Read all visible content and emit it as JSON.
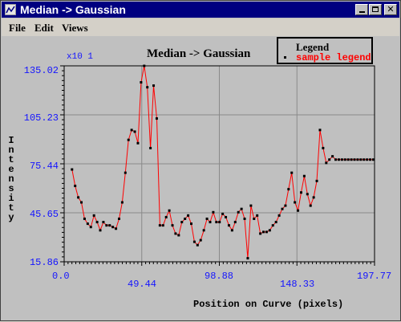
{
  "window": {
    "title": "Median -> Gaussian",
    "controls": [
      "minimize",
      "maximize",
      "close"
    ]
  },
  "menu": {
    "items": [
      "File",
      "Edit",
      "Views"
    ]
  },
  "chart_data": {
    "type": "line",
    "title": "Median -> Gaussian",
    "xlabel": "Position on Curve (pixels)",
    "ylabel": "Intensity",
    "y_scale_note": "x10 1",
    "xlim": [
      0.0,
      197.77
    ],
    "ylim": [
      15.86,
      135.02
    ],
    "x_ticks": [
      "0.0",
      "49.44",
      "98.88",
      "148.33",
      "197.77"
    ],
    "y_ticks": [
      "135.02",
      "105.23",
      "75.44",
      "45.65",
      "15.86"
    ],
    "grid": true,
    "legend_position": "top-right",
    "legend": {
      "title": "Legend",
      "entries": [
        "sample legend"
      ]
    },
    "colors": {
      "line": "#ff0000",
      "marker": "#000000",
      "tick_text": "#1414ff"
    },
    "series": [
      {
        "name": "sample legend",
        "x": [
          5,
          7,
          9,
          11,
          13,
          15,
          17,
          19,
          21,
          23,
          25,
          27,
          29,
          31,
          33,
          35,
          37,
          39,
          41,
          43,
          45,
          47,
          49,
          51,
          53,
          55,
          57,
          59,
          61,
          63,
          65,
          67,
          69,
          71,
          73,
          75,
          77,
          79,
          81,
          83,
          85,
          87,
          89,
          91,
          93,
          95,
          97,
          99,
          101,
          103,
          105,
          107,
          109,
          111,
          113,
          115,
          117,
          119,
          121,
          123,
          125,
          127,
          129,
          131,
          133,
          135,
          137,
          139,
          141,
          143,
          145,
          147,
          149,
          151,
          153,
          155,
          157,
          159,
          161,
          163,
          165,
          167,
          169,
          171,
          173,
          175,
          177,
          179,
          181,
          183,
          185,
          187,
          189,
          191,
          193,
          195,
          197
        ],
        "y": [
          72,
          62,
          55,
          52,
          42,
          39,
          37,
          44,
          40,
          35,
          40,
          38,
          38,
          37,
          36,
          42,
          52,
          70,
          90,
          96,
          95,
          88,
          125,
          135,
          122,
          85,
          123,
          103,
          38,
          38,
          43,
          47,
          38,
          33,
          32,
          40,
          42,
          44,
          39,
          28,
          26,
          29,
          35,
          42,
          40,
          46,
          40,
          40,
          45,
          43,
          38,
          35,
          40,
          46,
          48,
          42,
          18,
          50,
          42,
          44,
          33,
          34,
          34,
          35,
          38,
          40,
          44,
          48,
          50,
          60,
          70,
          52,
          47,
          58,
          68,
          57,
          50,
          55,
          65,
          96,
          85,
          76,
          78,
          80,
          78,
          78,
          78,
          78,
          78,
          78,
          78,
          78,
          78,
          78,
          78,
          78,
          78
        ]
      }
    ]
  }
}
